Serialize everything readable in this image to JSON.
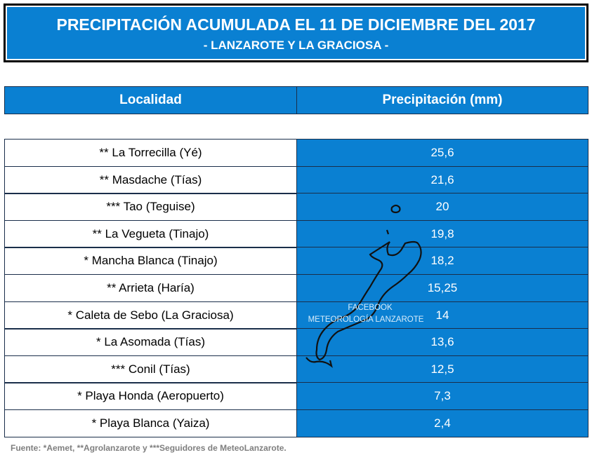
{
  "header": {
    "title": "PRECIPITACIÓN ACUMULADA EL 11 DE DICIEMBRE DEL 2017",
    "subtitle": "- LANZAROTE Y LA GRACIOSA -"
  },
  "table": {
    "columns": [
      "Localidad",
      "Precipitación (mm)"
    ],
    "rows": [
      [
        "** La Torrecilla (Yé)",
        "25,6"
      ],
      [
        "** Masdache (Tías)",
        "21,6"
      ],
      [
        "*** Tao (Teguise)",
        "20"
      ],
      [
        "** La Vegueta (Tinajo)",
        "19,8"
      ],
      [
        "* Mancha Blanca (Tinajo)",
        "18,2"
      ],
      [
        "** Arrieta (Haría)",
        "15,25"
      ],
      [
        "* Caleta de Sebo (La Graciosa)",
        "14"
      ],
      [
        "* La Asomada (Tías)",
        "13,6"
      ],
      [
        "*** Conil (Tías)",
        "12,5"
      ],
      [
        "* Playa Honda (Aeropuerto)",
        "7,3"
      ],
      [
        "* Playa Blanca (Yaiza)",
        "2,4"
      ]
    ]
  },
  "watermark": [
    "FACEBOOK",
    "METEOROLOGÍA LANZAROTE"
  ],
  "footer": "Fuente: *Aemet, **Agrolanzarote y ***Seguidores de MeteoLanzarote."
}
